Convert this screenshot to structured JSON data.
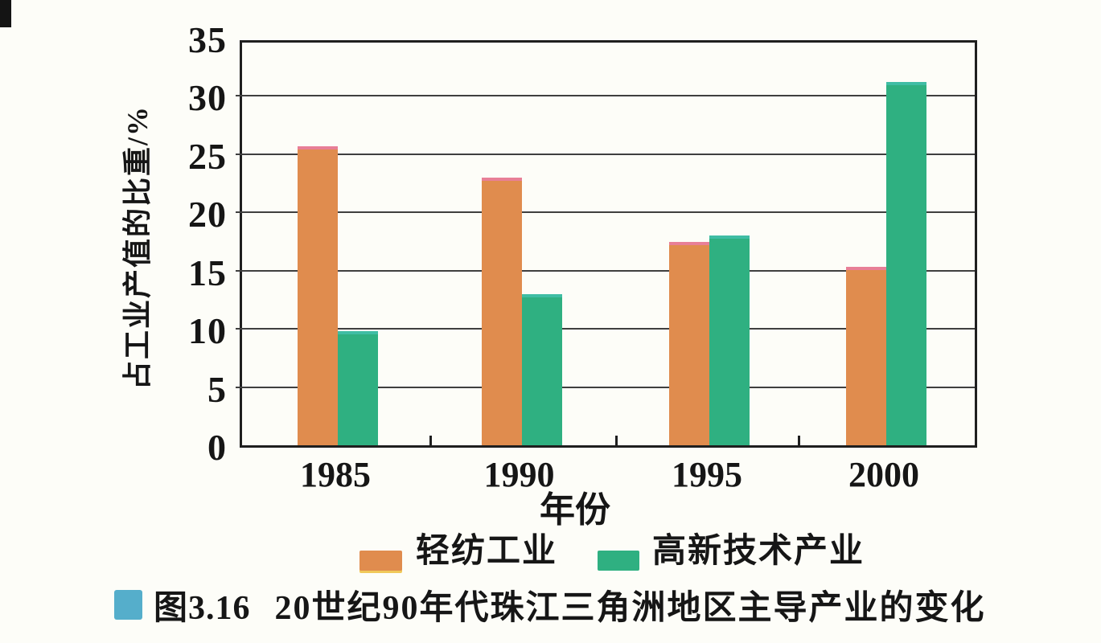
{
  "figure": {
    "caption_label": "图3.16",
    "caption_text": "20世纪90年代珠江三角洲地区主导产业的变化",
    "caption_icon_color": "#55aecb"
  },
  "chart_data": {
    "type": "bar",
    "title": "",
    "categories": [
      "1985",
      "1990",
      "1995",
      "2000"
    ],
    "series": [
      {
        "name": "轻纺工业",
        "color": "#e08c4e",
        "values": [
          25.7,
          23,
          17.5,
          15.3
        ]
      },
      {
        "name": "高新技术产业",
        "color": "#2fb081",
        "values": [
          9.8,
          13,
          18,
          31.2
        ]
      }
    ],
    "xlabel": "年份",
    "ylabel": "占工业产值的比重/%",
    "ylim": [
      0,
      35
    ],
    "yticks": [
      0,
      5,
      10,
      15,
      20,
      25,
      30,
      35
    ],
    "grid": true,
    "legend_position": "bottom",
    "axis_color": "#1f1f1f",
    "gridline_color": "#3f3f3f"
  }
}
